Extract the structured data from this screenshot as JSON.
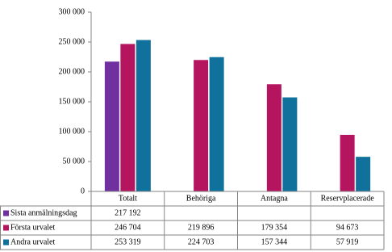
{
  "chart_data": {
    "type": "bar",
    "categories": [
      "Totalt",
      "Behöriga",
      "Antagna",
      "Reservplacerade"
    ],
    "series": [
      {
        "name": "Sista anmälningsdag",
        "color": "#7030a0",
        "values": [
          217192,
          null,
          null,
          null
        ],
        "value_labels": [
          "217 192",
          null,
          null,
          null
        ]
      },
      {
        "name": "Första urvalet",
        "color": "#b5145f",
        "values": [
          246704,
          219896,
          179354,
          94673
        ],
        "value_labels": [
          "246 704",
          "219 896",
          "179 354",
          "94 673"
        ]
      },
      {
        "name": "Andra urvalet",
        "color": "#10729c",
        "values": [
          253319,
          224703,
          157344,
          57919
        ],
        "value_labels": [
          "253 319",
          "224 703",
          "157 344",
          "57 919"
        ]
      }
    ],
    "ylim": [
      0,
      300000
    ],
    "yticks": [
      0,
      {
        "value": 50000,
        "label": "50 000"
      },
      {
        "value": 100000,
        "label": "100 000"
      },
      {
        "value": 150000,
        "label": "150 000"
      },
      {
        "value": 200000,
        "label": "200 000"
      },
      {
        "value": 250000,
        "label": "250 000"
      },
      {
        "value": 300000,
        "label": "300 000"
      }
    ],
    "data_table": true
  }
}
